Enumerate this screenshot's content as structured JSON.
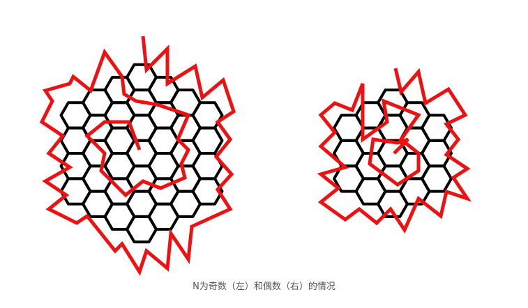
{
  "caption": "N为奇数（左）和偶数（右）的情况",
  "colors": {
    "grid": "#000000",
    "path": "#ee1111",
    "background": "#ffffff"
  },
  "figures": [
    {
      "name": "odd-case",
      "hex_radius": 3,
      "cell_count": 37
    },
    {
      "name": "even-case",
      "hex_radius": 2,
      "cell_count": 19
    }
  ]
}
